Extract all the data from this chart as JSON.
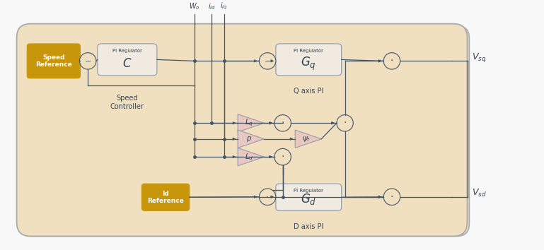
{
  "bg_color": "#f0e0c0",
  "bg_outer": "#f8f8f8",
  "border_color": "#aaaaaa",
  "golden_box_color": "#c8960a",
  "pi_box_color": "#f0eae0",
  "pi_box_border": "#8899aa",
  "triangle_color": "#e8c8c0",
  "triangle_border": "#9999aa",
  "line_color": "#445566",
  "sum_color": "#f0e0c0",
  "sum_border": "#445566",
  "text_color": "#334455",
  "label_speed_ref": "Speed\nReference",
  "label_id_ref": "Id\nReference",
  "label_speed_ctrl": "Speed\nController",
  "label_q_axis": "Q axis PI",
  "label_d_axis": "D axis PI",
  "label_lq": "$L_q$",
  "label_p": "$p$",
  "label_ld": "$L_d$",
  "label_psi": "$\\psi_f$",
  "label_vsq": "$V_{sq}$",
  "label_vsd": "$V_{sd}$"
}
